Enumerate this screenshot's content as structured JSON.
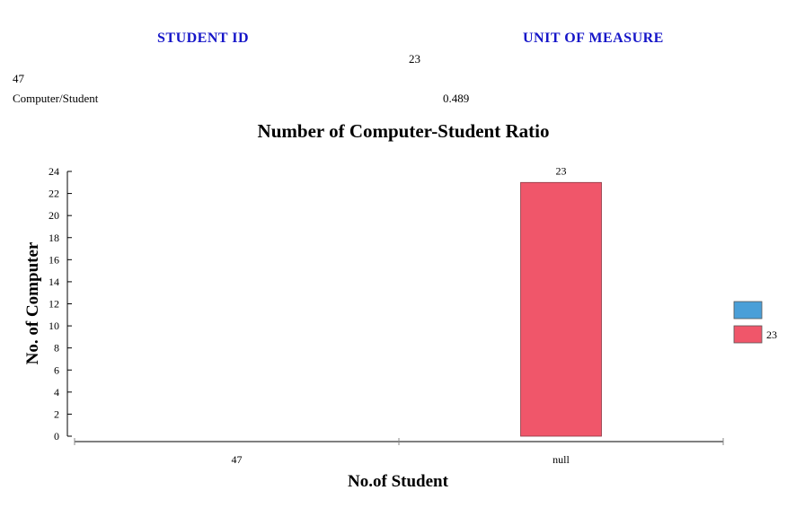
{
  "table": {
    "headers": [
      "STUDENT  ID",
      "UNIT  OF  MEASURE"
    ],
    "cells": [
      "23",
      "47",
      "Computer/Student",
      "0.489"
    ]
  },
  "chart_data": {
    "type": "bar",
    "title": "Number of Computer-Student Ratio",
    "xlabel": "No.of Student",
    "ylabel": "No. of Computer",
    "categories": [
      "47",
      "null"
    ],
    "ylim": [
      0,
      24
    ],
    "yticks": [
      0,
      2,
      4,
      6,
      8,
      10,
      12,
      14,
      16,
      18,
      20,
      22,
      24
    ],
    "series": [
      {
        "name": "",
        "color": "#4a9fd8",
        "values": [
          null,
          null
        ]
      },
      {
        "name": "23",
        "color": "#f0566a",
        "values": [
          null,
          23
        ]
      }
    ],
    "data_labels": [
      {
        "category": "null",
        "value": "23"
      }
    ],
    "legend": {
      "position": "right"
    },
    "grid": false
  }
}
